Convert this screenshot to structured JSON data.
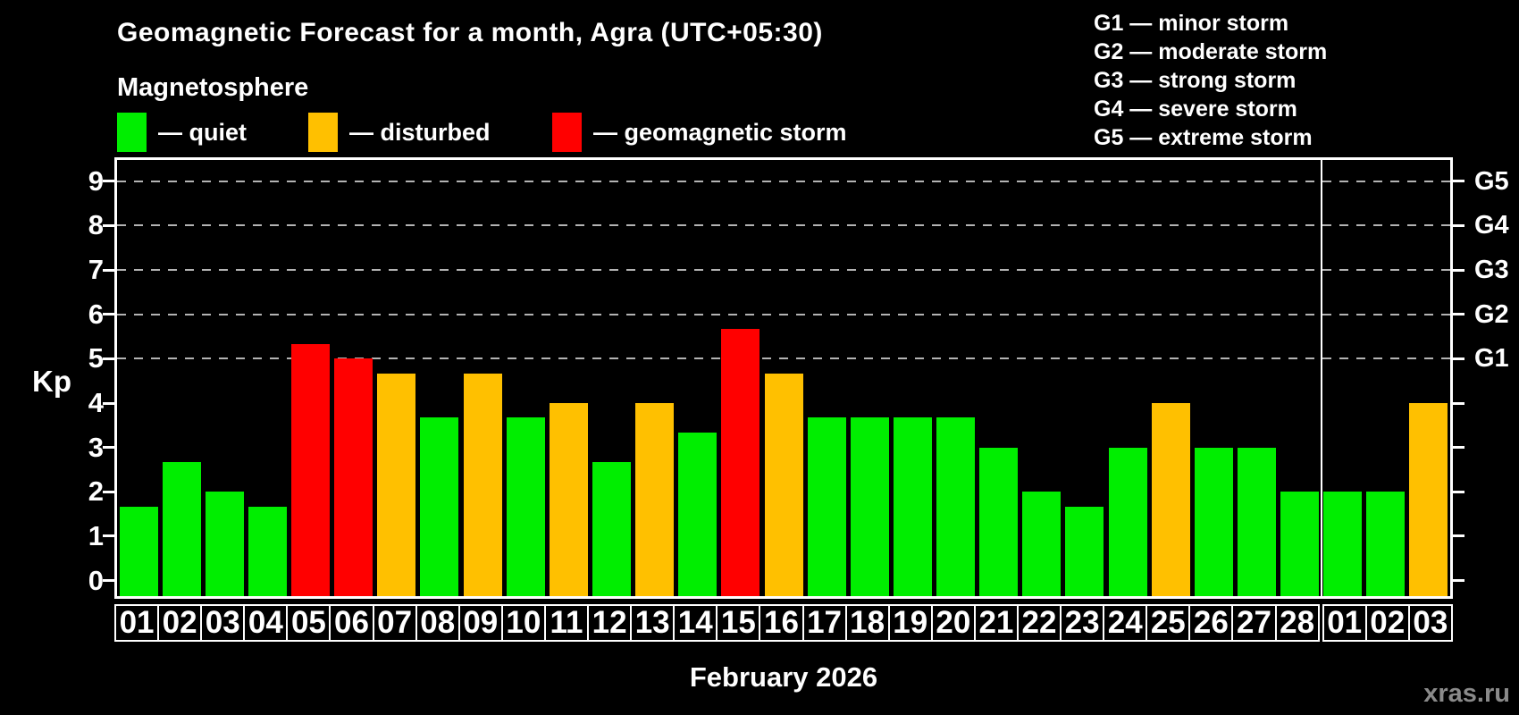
{
  "title": "Geomagnetic Forecast for a month, Agra (UTC+05:30)",
  "subtitle": "Magnetosphere",
  "legend": {
    "items": [
      {
        "name": "quiet",
        "label": "— quiet",
        "color": "#00ee00"
      },
      {
        "name": "disturbed",
        "label": "— disturbed",
        "color": "#ffc000"
      },
      {
        "name": "storm",
        "label": "— geomagnetic storm",
        "color": "#ff0000"
      }
    ]
  },
  "storm_scale_legend": [
    "G1 — minor storm",
    "G2 — moderate storm",
    "G3 — strong storm",
    "G4 — severe storm",
    "G5 — extreme storm"
  ],
  "y_axis": {
    "label": "Kp",
    "ticks": [
      0,
      1,
      2,
      3,
      4,
      5,
      6,
      7,
      8,
      9
    ]
  },
  "right_axis": {
    "labels": [
      {
        "text": "G1",
        "kp": 5
      },
      {
        "text": "G2",
        "kp": 6
      },
      {
        "text": "G3",
        "kp": 7
      },
      {
        "text": "G4",
        "kp": 8
      },
      {
        "text": "G5",
        "kp": 9
      }
    ]
  },
  "month_label": "February 2026",
  "watermark": "xras.ru",
  "chart_data": {
    "type": "bar",
    "title": "Geomagnetic Forecast for a month, Agra (UTC+05:30)",
    "xlabel": "February 2026",
    "ylabel": "Kp",
    "ylim": [
      0,
      9.5
    ],
    "grid": "dashed horizontal at Kp 5-9",
    "gridlines_kp": [
      5,
      6,
      7,
      8,
      9
    ],
    "legend_position": "top-left",
    "month_boundary_after_index": 27,
    "categories": [
      "01",
      "02",
      "03",
      "04",
      "05",
      "06",
      "07",
      "08",
      "09",
      "10",
      "11",
      "12",
      "13",
      "14",
      "15",
      "16",
      "17",
      "18",
      "19",
      "20",
      "21",
      "22",
      "23",
      "24",
      "25",
      "26",
      "27",
      "28",
      "01",
      "02",
      "03"
    ],
    "values": [
      1.67,
      2.67,
      2.0,
      1.67,
      5.33,
      5.0,
      4.67,
      3.67,
      4.67,
      3.67,
      4.0,
      2.67,
      4.0,
      3.33,
      5.67,
      4.67,
      3.67,
      3.67,
      3.67,
      3.67,
      3.0,
      2.0,
      1.67,
      3.0,
      4.0,
      3.0,
      3.0,
      2.0,
      2.0,
      2.0,
      4.0
    ],
    "statuses": [
      "quiet",
      "quiet",
      "quiet",
      "quiet",
      "storm",
      "storm",
      "disturbed",
      "quiet",
      "disturbed",
      "quiet",
      "disturbed",
      "quiet",
      "disturbed",
      "quiet",
      "storm",
      "disturbed",
      "quiet",
      "quiet",
      "quiet",
      "quiet",
      "quiet",
      "quiet",
      "quiet",
      "quiet",
      "disturbed",
      "quiet",
      "quiet",
      "quiet",
      "quiet",
      "quiet",
      "disturbed"
    ],
    "status_colors": {
      "quiet": "#00ee00",
      "disturbed": "#ffc000",
      "storm": "#ff0000"
    }
  }
}
